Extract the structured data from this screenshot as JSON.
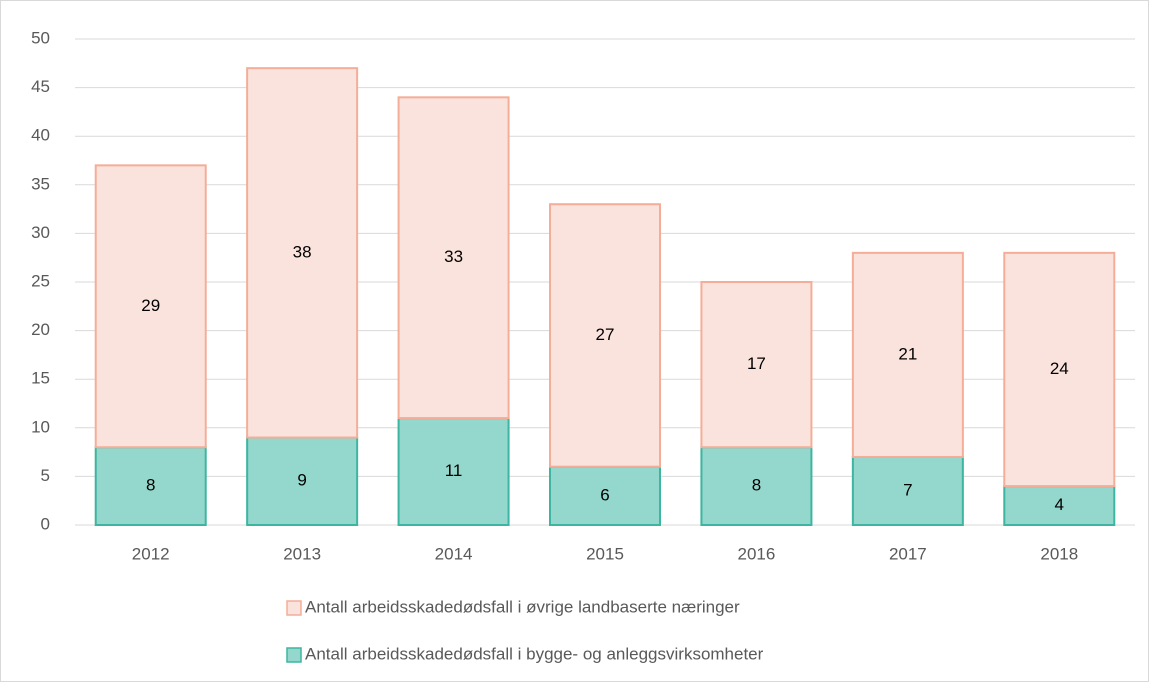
{
  "chart_data": {
    "type": "stacked_bar",
    "categories": [
      "2012",
      "2013",
      "2014",
      "2015",
      "2016",
      "2017",
      "2018"
    ],
    "series": [
      {
        "name": "Antall arbeidsskadedødsfall i bygge- og anleggsvirksomheter",
        "color": "#94d7cc",
        "stroke": "#3db5a0",
        "values": [
          8,
          9,
          11,
          6,
          8,
          7,
          4
        ]
      },
      {
        "name": "Antall arbeidsskadedødsfall i øvrige landbaserte næringer",
        "color": "#fbe3dd",
        "stroke": "#f3ad98",
        "values": [
          29,
          38,
          33,
          27,
          17,
          21,
          24
        ]
      }
    ],
    "ylim": [
      0,
      50
    ],
    "yticks": [
      0,
      5,
      10,
      15,
      20,
      25,
      30,
      35,
      40,
      45,
      50
    ],
    "grid": true,
    "legend": "bottom"
  }
}
